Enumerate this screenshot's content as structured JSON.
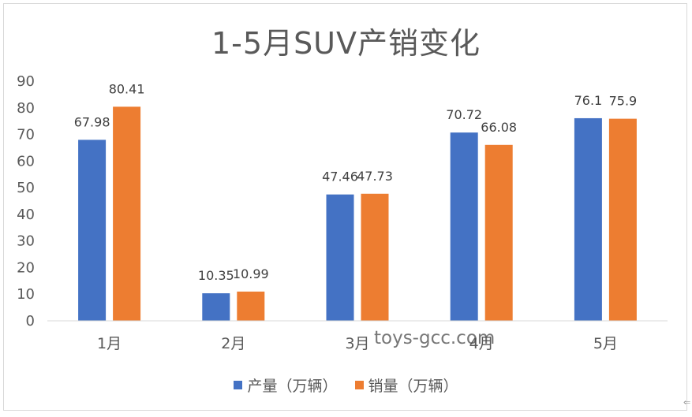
{
  "chart_data": {
    "type": "bar",
    "title": "1-5月SUV产销变化",
    "categories": [
      "1月",
      "2月",
      "3月",
      "4月",
      "5月"
    ],
    "series": [
      {
        "name": "产量（万辆）",
        "color": "#4472C4",
        "values": [
          67.98,
          10.35,
          47.46,
          70.72,
          76.1
        ],
        "labels": [
          "67.98",
          "10.35",
          "47.46",
          "70.72",
          "76.1"
        ]
      },
      {
        "name": "销量（万辆）",
        "color": "#ED7D31",
        "values": [
          80.41,
          10.99,
          47.73,
          66.08,
          75.9
        ],
        "labels": [
          "80.41",
          "10.99",
          "47.73",
          "66.08",
          "75.9"
        ]
      }
    ],
    "ylim": [
      0,
      90
    ],
    "yticks": [
      "0",
      "10",
      "20",
      "30",
      "40",
      "50",
      "60",
      "70",
      "80",
      "90"
    ],
    "grid": false,
    "legend_position": "bottom"
  },
  "watermark": "toys-gcc.com"
}
